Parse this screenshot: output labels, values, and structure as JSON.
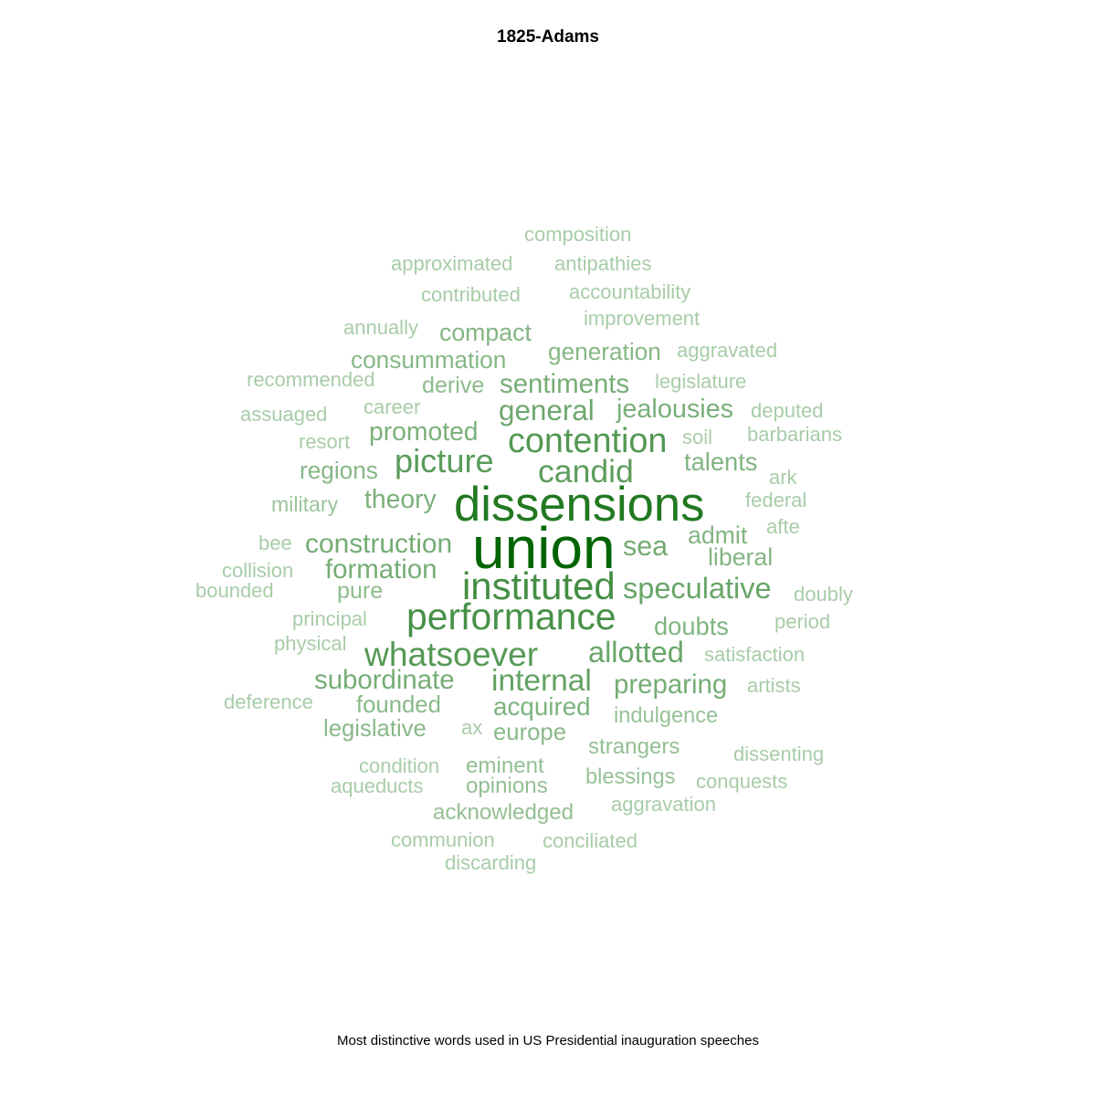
{
  "chart_data": {
    "type": "wordcloud",
    "title": "1825-Adams",
    "caption": "Most distinctive words used in US Presidential inauguration speeches",
    "colors": {
      "low": "#a8cca8",
      "high": "#006400"
    },
    "words": [
      {
        "text": "union",
        "weight": 1.0
      },
      {
        "text": "dissensions",
        "weight": 0.78
      },
      {
        "text": "instituted",
        "weight": 0.58
      },
      {
        "text": "performance",
        "weight": 0.56
      },
      {
        "text": "contention",
        "weight": 0.5
      },
      {
        "text": "whatsoever",
        "weight": 0.49
      },
      {
        "text": "picture",
        "weight": 0.47
      },
      {
        "text": "candid",
        "weight": 0.46
      },
      {
        "text": "internal",
        "weight": 0.42
      },
      {
        "text": "speculative",
        "weight": 0.4
      },
      {
        "text": "allotted",
        "weight": 0.4
      },
      {
        "text": "general",
        "weight": 0.38
      },
      {
        "text": "sea",
        "weight": 0.36
      },
      {
        "text": "construction",
        "weight": 0.35
      },
      {
        "text": "formation",
        "weight": 0.34
      },
      {
        "text": "sentiments",
        "weight": 0.34
      },
      {
        "text": "subordinate",
        "weight": 0.34
      },
      {
        "text": "preparing",
        "weight": 0.34
      },
      {
        "text": "jealousies",
        "weight": 0.33
      },
      {
        "text": "theory",
        "weight": 0.32
      },
      {
        "text": "promoted",
        "weight": 0.32
      },
      {
        "text": "acquired",
        "weight": 0.31
      },
      {
        "text": "doubts",
        "weight": 0.3
      },
      {
        "text": "talents",
        "weight": 0.3
      },
      {
        "text": "liberal",
        "weight": 0.29
      },
      {
        "text": "admit",
        "weight": 0.29
      },
      {
        "text": "compact",
        "weight": 0.29
      },
      {
        "text": "regions",
        "weight": 0.28
      },
      {
        "text": "generation",
        "weight": 0.28
      },
      {
        "text": "consummation",
        "weight": 0.28
      },
      {
        "text": "founded",
        "weight": 0.27
      },
      {
        "text": "legislative",
        "weight": 0.27
      },
      {
        "text": "europe",
        "weight": 0.27
      },
      {
        "text": "derive",
        "weight": 0.26
      },
      {
        "text": "pure",
        "weight": 0.26
      },
      {
        "text": "eminent",
        "weight": 0.24
      },
      {
        "text": "opinions",
        "weight": 0.24
      },
      {
        "text": "strangers",
        "weight": 0.24
      },
      {
        "text": "acknowledged",
        "weight": 0.24
      },
      {
        "text": "blessings",
        "weight": 0.23
      },
      {
        "text": "indulgence",
        "weight": 0.23
      },
      {
        "text": "military",
        "weight": 0.22
      },
      {
        "text": "composition",
        "weight": 0.2
      },
      {
        "text": "approximated",
        "weight": 0.2
      },
      {
        "text": "antipathies",
        "weight": 0.2
      },
      {
        "text": "contributed",
        "weight": 0.2
      },
      {
        "text": "accountability",
        "weight": 0.2
      },
      {
        "text": "improvement",
        "weight": 0.2
      },
      {
        "text": "annually",
        "weight": 0.2
      },
      {
        "text": "aggravated",
        "weight": 0.2
      },
      {
        "text": "recommended",
        "weight": 0.2
      },
      {
        "text": "legislature",
        "weight": 0.2
      },
      {
        "text": "career",
        "weight": 0.2
      },
      {
        "text": "assuaged",
        "weight": 0.2
      },
      {
        "text": "deputed",
        "weight": 0.2
      },
      {
        "text": "resort",
        "weight": 0.2
      },
      {
        "text": "soil",
        "weight": 0.2
      },
      {
        "text": "barbarians",
        "weight": 0.2
      },
      {
        "text": "ark",
        "weight": 0.2
      },
      {
        "text": "federal",
        "weight": 0.2
      },
      {
        "text": "afte",
        "weight": 0.2
      },
      {
        "text": "bee",
        "weight": 0.2
      },
      {
        "text": "collision",
        "weight": 0.2
      },
      {
        "text": "bounded",
        "weight": 0.2
      },
      {
        "text": "doubly",
        "weight": 0.2
      },
      {
        "text": "principal",
        "weight": 0.2
      },
      {
        "text": "period",
        "weight": 0.2
      },
      {
        "text": "physical",
        "weight": 0.2
      },
      {
        "text": "satisfaction",
        "weight": 0.2
      },
      {
        "text": "artists",
        "weight": 0.2
      },
      {
        "text": "deference",
        "weight": 0.2
      },
      {
        "text": "ax",
        "weight": 0.2
      },
      {
        "text": "condition",
        "weight": 0.2
      },
      {
        "text": "dissenting",
        "weight": 0.2
      },
      {
        "text": "aqueducts",
        "weight": 0.2
      },
      {
        "text": "conquests",
        "weight": 0.2
      },
      {
        "text": "aggravation",
        "weight": 0.2
      },
      {
        "text": "communion",
        "weight": 0.2
      },
      {
        "text": "conciliated",
        "weight": 0.2
      },
      {
        "text": "discarding",
        "weight": 0.2
      }
    ]
  }
}
